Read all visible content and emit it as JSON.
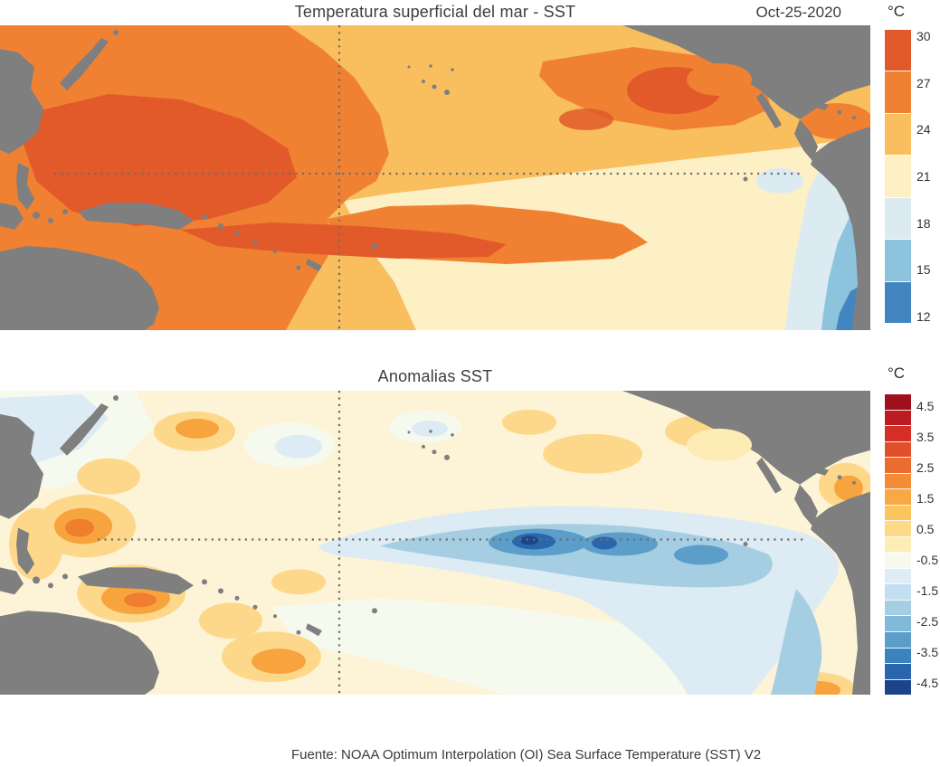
{
  "page": {
    "units_label": "°C",
    "source": "Fuente: NOAA Optimum Interpolation (OI) Sea Surface Temperature (SST) V2",
    "land_color": "#7f7f7f",
    "reference_lines": [
      "equator (horizontal dotted line)",
      "date line (vertical dotted line)"
    ]
  },
  "chart_data": [
    {
      "type": "heatmap",
      "title": "Temperatura superficial del mar - SST",
      "date": "Oct-25-2020",
      "units": "°C",
      "region": "Tropical and North Pacific Ocean (land masked in gray)",
      "legend_position": "right colorbar",
      "colorbar": {
        "min": 12,
        "max": 30,
        "ticks": [
          30,
          27,
          24,
          21,
          18,
          15,
          12
        ],
        "colors": [
          "#e25a2a",
          "#f08133",
          "#f9bf5e",
          "#fdf0c2",
          "#dcebf2",
          "#8ec3de",
          "#4186c0"
        ]
      },
      "features": [
        {
          "name": "western_pacific_warm_pool",
          "approx_sst_c": "29-30"
        },
        {
          "name": "north_pacific_subtropics",
          "approx_sst_c": "24-28"
        },
        {
          "name": "eastern_equatorial_cold_tongue",
          "approx_sst_c": "20-22"
        },
        {
          "name": "peru_chile_coastal_upwelling",
          "approx_sst_c": "12-17"
        }
      ]
    },
    {
      "type": "heatmap",
      "title": "Anomalias SST",
      "units": "°C",
      "legend_position": "right colorbar",
      "colorbar": {
        "min": -4.5,
        "max": 4.5,
        "ticks": [
          4.5,
          3.5,
          2.5,
          1.5,
          0.5,
          -0.5,
          -1.5,
          -2.5,
          -3.5,
          -4.5
        ],
        "colors": [
          "#a00f1c",
          "#bc1b21",
          "#d32f27",
          "#e1502b",
          "#eb6c2f",
          "#f28c36",
          "#f8a943",
          "#fbc55e",
          "#fdda87",
          "#fdecb3",
          "#f6f9ee",
          "#ddecf5",
          "#c3def0",
          "#a6cee3",
          "#81b9da",
          "#5b9ec9",
          "#3a83bd",
          "#2a66ae",
          "#1c4489"
        ]
      },
      "features": [
        {
          "name": "la_nina_cold_tongue_central_eastern_equatorial_pacific",
          "approx_anomaly_c": "-1.5 to -3.0"
        },
        {
          "name": "western_pacific_warm_anomalies",
          "approx_anomaly_c": "+0.5 to +2.0"
        },
        {
          "name": "southeast_pacific_coastal_cool_anomalies",
          "approx_anomaly_c": "-0.5 to -1.5"
        }
      ]
    }
  ]
}
